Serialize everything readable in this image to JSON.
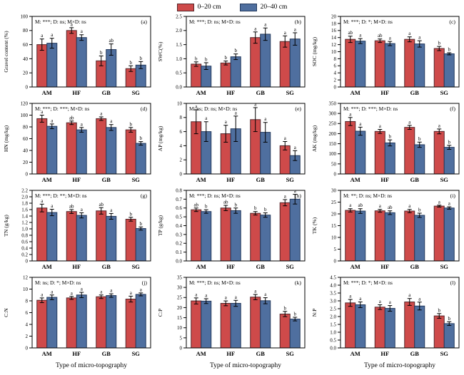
{
  "figure": {
    "xtitle": "Type of micro-topography",
    "colors": {
      "series": [
        {
          "fill": "#CE4A4A",
          "border": "#55262a"
        },
        {
          "fill": "#4F6F9F",
          "border": "#243a5e"
        }
      ],
      "error_bar": "#000000",
      "axis": "#000000"
    },
    "legend": {
      "items": [
        {
          "label": "0–20 cm"
        },
        {
          "label": "20–40 cm"
        }
      ]
    }
  },
  "chart_data": [
    {
      "id": "a",
      "type": "bar",
      "panel_label": "(a)",
      "annotation": "M: ***; D: ns; M×D: ns",
      "ylabel": "Gravel content (%)",
      "ylim": [
        0,
        100
      ],
      "ytick_vals": [
        0,
        20,
        40,
        60,
        80,
        100
      ],
      "ytick_labels": [
        "0",
        "20",
        "40",
        "60",
        "80",
        "100"
      ],
      "categories": [
        "AM",
        "HF",
        "GB",
        "SG"
      ],
      "series": [
        {
          "name": "0–20 cm",
          "values": [
            60,
            80,
            37,
            26
          ],
          "errors": [
            8,
            4,
            7,
            4
          ],
          "letters": [
            "a",
            "a",
            "b",
            "b"
          ]
        },
        {
          "name": "20–40 cm",
          "values": [
            62,
            70,
            53,
            31
          ],
          "errors": [
            7,
            4,
            8,
            5
          ],
          "letters": [
            "a",
            "a",
            "ab",
            "b"
          ]
        }
      ],
      "xtitle": false
    },
    {
      "id": "b",
      "type": "bar",
      "panel_label": "(b)",
      "annotation": "M: ***; D: ns; M×D: ns",
      "ylabel": "SWC(%)",
      "ylim": [
        0,
        2.5
      ],
      "ytick_vals": [
        0,
        0.5,
        1.0,
        1.5,
        2.0,
        2.5
      ],
      "ytick_labels": [
        "0.0",
        "0.5",
        "1.0",
        "1.5",
        "2.0",
        "2.5"
      ],
      "categories": [
        "AM",
        "HF",
        "GB",
        "SG"
      ],
      "series": [
        {
          "name": "0–20 cm",
          "values": [
            0.81,
            0.85,
            1.75,
            1.61
          ],
          "errors": [
            0.08,
            0.07,
            0.2,
            0.2
          ],
          "letters": [
            "b",
            "b",
            "a",
            "a"
          ]
        },
        {
          "name": "20–40 cm",
          "values": [
            0.74,
            1.07,
            1.87,
            1.7
          ],
          "errors": [
            0.12,
            0.1,
            0.22,
            0.22
          ],
          "letters": [
            "b",
            "b",
            "a",
            "a"
          ]
        }
      ],
      "xtitle": false
    },
    {
      "id": "c",
      "type": "bar",
      "panel_label": "(c)",
      "annotation": "M: ***; D: *; M×D: ns",
      "ylabel": "SOC (mg/kg)",
      "ylim": [
        0,
        20
      ],
      "ytick_vals": [
        0,
        2,
        4,
        6,
        8,
        10,
        12,
        14,
        16,
        18,
        20
      ],
      "ytick_labels": [
        "0",
        "2",
        "4",
        "6",
        "8",
        "10",
        "12",
        "14",
        "16",
        "18",
        "20"
      ],
      "categories": [
        "AM",
        "HF",
        "GB",
        "SG"
      ],
      "series": [
        {
          "name": "0–20 cm",
          "values": [
            13.5,
            13.1,
            13.5,
            10.9
          ],
          "errors": [
            0.9,
            0.5,
            0.7,
            0.6
          ],
          "letters": [
            "ab",
            "ab",
            "a",
            "b"
          ]
        },
        {
          "name": "20–40 cm",
          "values": [
            13.0,
            12.3,
            12.2,
            9.4
          ],
          "errors": [
            0.7,
            0.6,
            0.9,
            0.3
          ],
          "letters": [
            "a",
            "a",
            "a",
            "b"
          ]
        }
      ],
      "xtitle": false
    },
    {
      "id": "d",
      "type": "bar",
      "panel_label": "(d)",
      "annotation": "M: ***; D: ***; M×D: ns",
      "ylabel": "HN (mg/kg)",
      "ylim": [
        0,
        120
      ],
      "ytick_vals": [
        0,
        20,
        40,
        60,
        80,
        100,
        120
      ],
      "ytick_labels": [
        "0",
        "20",
        "40",
        "60",
        "80",
        "100",
        "120"
      ],
      "categories": [
        "AM",
        "HF",
        "GB",
        "SG"
      ],
      "series": [
        {
          "name": "0–20 cm",
          "values": [
            94,
            87,
            94,
            75
          ],
          "errors": [
            6,
            3,
            3,
            4
          ],
          "letters": [
            "a",
            "ab",
            "a",
            "b"
          ]
        },
        {
          "name": "20–40 cm",
          "values": [
            81,
            75,
            79,
            52
          ],
          "errors": [
            4,
            4,
            5,
            3
          ],
          "letters": [
            "a",
            "a",
            "a",
            "b"
          ]
        }
      ],
      "xtitle": false
    },
    {
      "id": "e",
      "type": "bar",
      "panel_label": "(e)",
      "annotation": "M: ns; D: ns; M×D: ns",
      "ylabel": "AP (mg/kg)",
      "ylim": [
        0,
        10
      ],
      "ytick_vals": [
        0,
        2,
        4,
        6,
        8,
        10
      ],
      "ytick_labels": [
        "0",
        "2",
        "4",
        "6",
        "8",
        "10"
      ],
      "categories": [
        "AM",
        "HF",
        "GB",
        "SG"
      ],
      "series": [
        {
          "name": "0–20 cm",
          "values": [
            7.4,
            5.7,
            7.7,
            4.0
          ],
          "errors": [
            1.7,
            1.2,
            1.7,
            0.6
          ],
          "letters": [
            "a",
            "a",
            "a",
            "a"
          ]
        },
        {
          "name": "20–40 cm",
          "values": [
            6.0,
            6.4,
            5.9,
            2.6
          ],
          "errors": [
            1.4,
            1.8,
            1.4,
            0.7
          ],
          "letters": [
            "a",
            "a",
            "a",
            "a"
          ]
        }
      ],
      "xtitle": false
    },
    {
      "id": "f",
      "type": "bar",
      "panel_label": "(f)",
      "annotation": "M: ***; D: ***; M×D: ns",
      "ylabel": "AK (mg/kg)",
      "ylim": [
        0,
        350
      ],
      "ytick_vals": [
        0,
        50,
        100,
        150,
        200,
        250,
        300,
        350
      ],
      "ytick_labels": [
        "0",
        "50",
        "100",
        "150",
        "200",
        "250",
        "300",
        "350"
      ],
      "categories": [
        "AM",
        "HF",
        "GB",
        "SG"
      ],
      "series": [
        {
          "name": "0–20 cm",
          "values": [
            260,
            211,
            231,
            211
          ],
          "errors": [
            20,
            10,
            10,
            12
          ],
          "letters": [
            "a",
            "a",
            "a",
            "a"
          ]
        },
        {
          "name": "20–40 cm",
          "values": [
            212,
            154,
            145,
            132
          ],
          "errors": [
            20,
            15,
            13,
            10
          ],
          "letters": [
            "a",
            "b",
            "b",
            "b"
          ]
        }
      ],
      "xtitle": false
    },
    {
      "id": "g",
      "type": "bar",
      "panel_label": "(g)",
      "annotation": "M: ***; D: **; M×D: ns",
      "ylabel": "TN (g/kg)",
      "ylim": [
        0,
        2.2
      ],
      "ytick_vals": [
        0,
        0.2,
        0.4,
        0.6,
        0.8,
        1.0,
        1.2,
        1.4,
        1.6,
        1.8,
        2.0,
        2.2
      ],
      "ytick_labels": [
        "0",
        "0.2",
        "0.4",
        "0.6",
        "0.8",
        "1.0",
        "1.2",
        "1.4",
        "1.6",
        "1.8",
        "2.0",
        "2.2"
      ],
      "categories": [
        "AM",
        "HF",
        "GB",
        "SG"
      ],
      "series": [
        {
          "name": "0–20 cm",
          "values": [
            1.65,
            1.54,
            1.56,
            1.3
          ],
          "errors": [
            0.12,
            0.06,
            0.1,
            0.06
          ],
          "letters": [
            "a",
            "ab",
            "ab",
            "b"
          ]
        },
        {
          "name": "20–40 cm",
          "values": [
            1.51,
            1.42,
            1.39,
            1.01
          ],
          "errors": [
            0.1,
            0.08,
            0.09,
            0.05
          ],
          "letters": [
            "a",
            "a",
            "a",
            "b"
          ]
        }
      ],
      "xtitle": false
    },
    {
      "id": "h",
      "type": "bar",
      "panel_label": "(h)",
      "annotation": "M: ***; D: ns; M×D: ns",
      "ylabel": "TP (g/kg)",
      "ylim": [
        0,
        0.8
      ],
      "ytick_vals": [
        0,
        0.1,
        0.2,
        0.3,
        0.4,
        0.5,
        0.6,
        0.7,
        0.8
      ],
      "ytick_labels": [
        "0.0",
        "0.1",
        "0.2",
        "0.3",
        "0.4",
        "0.5",
        "0.6",
        "0.7",
        "0.8"
      ],
      "categories": [
        "AM",
        "HF",
        "GB",
        "SG"
      ],
      "series": [
        {
          "name": "0–20 cm",
          "values": [
            0.58,
            0.6,
            0.54,
            0.66
          ],
          "errors": [
            0.02,
            0.03,
            0.02,
            0.035
          ],
          "letters": [
            "ab",
            "ab",
            "b",
            "a"
          ]
        },
        {
          "name": "20–40 cm",
          "values": [
            0.56,
            0.57,
            0.52,
            0.7
          ],
          "errors": [
            0.02,
            0.03,
            0.025,
            0.055
          ],
          "letters": [
            "b",
            "b",
            "b",
            "a"
          ]
        }
      ],
      "xtitle": false
    },
    {
      "id": "i",
      "type": "bar",
      "panel_label": "(i)",
      "annotation": "M: **; D: ns; M×D: ns",
      "ylabel": "TK (%)",
      "ylim": [
        0,
        30
      ],
      "ytick_vals": [
        0,
        5,
        10,
        15,
        20,
        25,
        30
      ],
      "ytick_labels": [
        "0",
        "5",
        "10",
        "15",
        "20",
        "25",
        "30"
      ],
      "categories": [
        "AM",
        "HF",
        "GB",
        "SG"
      ],
      "series": [
        {
          "name": "0–20 cm",
          "values": [
            21.5,
            21.3,
            21.2,
            23.3
          ],
          "errors": [
            0.7,
            0.6,
            0.7,
            0.4
          ],
          "letters": [
            "a",
            "a",
            "a",
            "a"
          ]
        },
        {
          "name": "20–40 cm",
          "values": [
            21.2,
            20.5,
            19.4,
            22.5
          ],
          "errors": [
            1.0,
            0.8,
            0.9,
            0.5
          ],
          "letters": [
            "ab",
            "ab",
            "b",
            "a"
          ]
        }
      ],
      "xtitle": false
    },
    {
      "id": "j",
      "type": "bar",
      "panel_label": "(j)",
      "annotation": "M: ns; D: *; M×D: ns",
      "ylabel": "C:N",
      "ylim": [
        0,
        12
      ],
      "ytick_vals": [
        0,
        2,
        4,
        6,
        8,
        10,
        12
      ],
      "ytick_labels": [
        "0",
        "2",
        "4",
        "6",
        "8",
        "10",
        "12"
      ],
      "categories": [
        "AM",
        "HF",
        "GB",
        "SG"
      ],
      "series": [
        {
          "name": "0–20 cm",
          "values": [
            8.1,
            8.5,
            8.7,
            8.3
          ],
          "errors": [
            0.4,
            0.25,
            0.3,
            0.5
          ],
          "letters": [
            "a",
            "a",
            "a",
            "a"
          ]
        },
        {
          "name": "20–40 cm",
          "values": [
            8.6,
            9.0,
            8.9,
            9.1
          ],
          "errors": [
            0.4,
            0.45,
            0.3,
            0.25
          ],
          "letters": [
            "a",
            "a",
            "a",
            "a"
          ]
        }
      ],
      "xtitle": true
    },
    {
      "id": "k",
      "type": "bar",
      "panel_label": "(k)",
      "annotation": "M: ***; D: ns; M×D: ns",
      "ylabel": "C:P",
      "ylim": [
        0,
        35
      ],
      "ytick_vals": [
        0,
        5,
        10,
        15,
        20,
        25,
        30,
        35
      ],
      "ytick_labels": [
        "0",
        "5",
        "10",
        "15",
        "20",
        "25",
        "30",
        "35"
      ],
      "categories": [
        "AM",
        "HF",
        "GB",
        "SG"
      ],
      "series": [
        {
          "name": "0–20 cm",
          "values": [
            23.3,
            22.1,
            25.2,
            16.8
          ],
          "errors": [
            1.5,
            1.2,
            1.3,
            1.3
          ],
          "letters": [
            "a",
            "a",
            "a",
            "b"
          ]
        },
        {
          "name": "20–40 cm",
          "values": [
            23.2,
            22.1,
            23.4,
            14.3
          ],
          "errors": [
            1.2,
            1.5,
            1.5,
            0.9
          ],
          "letters": [
            "a",
            "a",
            "a",
            "b"
          ]
        }
      ],
      "xtitle": true
    },
    {
      "id": "l",
      "type": "bar",
      "panel_label": "(l)",
      "annotation": "M: ***; D: *; M×D: ns",
      "ylabel": "N:P",
      "ylim": [
        0,
        4.5
      ],
      "ytick_vals": [
        0,
        0.5,
        1.0,
        1.5,
        2.0,
        2.5,
        3.0,
        3.5,
        4.0,
        4.5
      ],
      "ytick_labels": [
        "0.0",
        "0.5",
        "1.0",
        "1.5",
        "2.0",
        "2.5",
        "3.0",
        "3.5",
        "4.0",
        "4.5"
      ],
      "categories": [
        "AM",
        "HF",
        "GB",
        "SG"
      ],
      "series": [
        {
          "name": "0–20 cm",
          "values": [
            2.87,
            2.6,
            2.93,
            2.04
          ],
          "errors": [
            0.22,
            0.15,
            0.22,
            0.15
          ],
          "letters": [
            "a",
            "a",
            "a",
            "b"
          ]
        },
        {
          "name": "20–40 cm",
          "values": [
            2.75,
            2.52,
            2.67,
            1.55
          ],
          "errors": [
            0.18,
            0.18,
            0.25,
            0.12
          ],
          "letters": [
            "a",
            "a",
            "a",
            "b"
          ]
        }
      ],
      "xtitle": true
    }
  ]
}
